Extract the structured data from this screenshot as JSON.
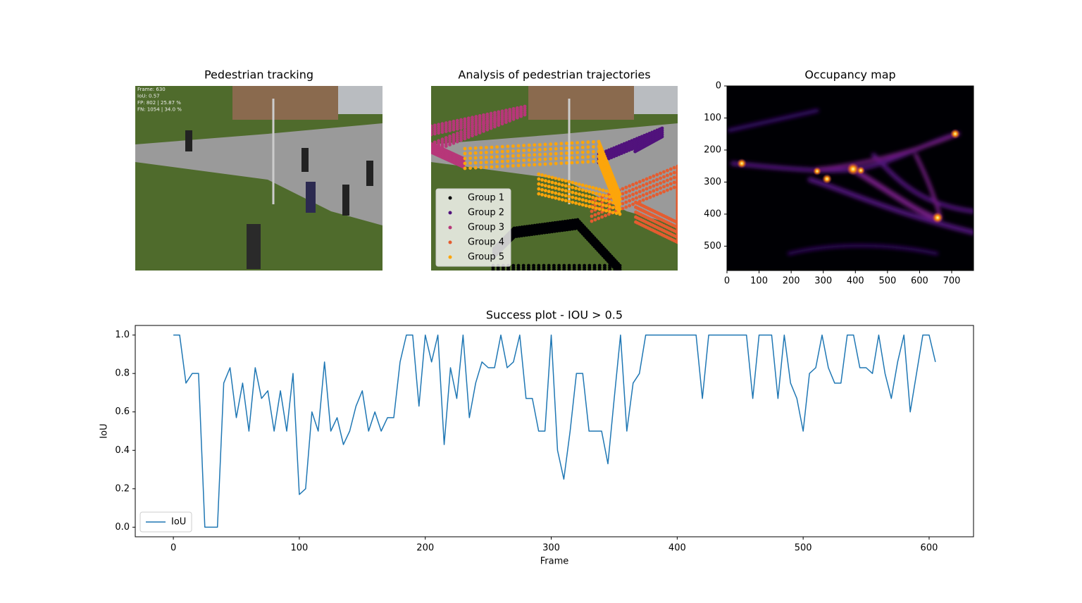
{
  "chart_data": [
    {
      "type": "image",
      "title": "Pedestrian tracking",
      "overlay": [
        "Frame: 630",
        "IoU: 0.57",
        "FP: 802 | 25.87 %",
        "FN: 1054 | 34.0 %"
      ]
    },
    {
      "type": "scatter",
      "title": "Analysis of pedestrian trajectories",
      "legend": "lower left",
      "series": [
        {
          "name": "Group 1",
          "color": "#000004"
        },
        {
          "name": "Group 2",
          "color": "#51127c"
        },
        {
          "name": "Group 3",
          "color": "#b73779"
        },
        {
          "name": "Group 4",
          "color": "#e55c30"
        },
        {
          "name": "Group 5",
          "color": "#fca50a"
        }
      ]
    },
    {
      "type": "heatmap",
      "title": "Occupancy map",
      "cmap": "inferno",
      "xlim": [
        0,
        768
      ],
      "ylim": [
        576,
        0
      ],
      "xticks": [
        0,
        100,
        200,
        300,
        400,
        500,
        600,
        700
      ],
      "yticks": [
        0,
        100,
        200,
        300,
        400,
        500
      ]
    },
    {
      "type": "line",
      "title": "Success plot - IOU > 0.5",
      "x_label": "Frame",
      "y_label": "IoU",
      "legend": "lower left",
      "xlim": [
        -30.25,
        635.25
      ],
      "ylim": [
        -0.05,
        1.05
      ],
      "xticks": [
        0,
        100,
        200,
        300,
        400,
        500,
        600
      ],
      "yticks": [
        {
          "value": 0,
          "label": "0.0"
        },
        0.2,
        0.4,
        0.6,
        0.8,
        {
          "value": 1,
          "label": "1.0"
        }
      ],
      "x": [
        0,
        5,
        10,
        15,
        20,
        25,
        30,
        35,
        40,
        45,
        50,
        55,
        60,
        65,
        70,
        75,
        80,
        85,
        90,
        95,
        100,
        105,
        110,
        115,
        120,
        125,
        130,
        135,
        140,
        145,
        150,
        155,
        160,
        165,
        170,
        175,
        180,
        185,
        190,
        195,
        200,
        205,
        210,
        215,
        220,
        225,
        230,
        235,
        240,
        245,
        250,
        255,
        260,
        265,
        270,
        275,
        280,
        285,
        290,
        295,
        300,
        305,
        310,
        315,
        320,
        325,
        330,
        335,
        340,
        345,
        350,
        355,
        360,
        365,
        370,
        375,
        380,
        385,
        390,
        395,
        400,
        405,
        410,
        415,
        420,
        425,
        430,
        435,
        440,
        445,
        450,
        455,
        460,
        465,
        470,
        475,
        480,
        485,
        490,
        495,
        500,
        505,
        510,
        515,
        520,
        525,
        530,
        535,
        540,
        545,
        550,
        555,
        560,
        565,
        570,
        575,
        580,
        585,
        590,
        595,
        600,
        605
      ],
      "series": [
        {
          "name": "IoU",
          "color": "#1f77b4",
          "values": [
            1.0,
            1.0,
            0.75,
            0.8,
            0.8,
            0.0,
            0.0,
            0.0,
            0.75,
            0.83,
            0.57,
            0.75,
            0.5,
            0.83,
            0.67,
            0.71,
            0.5,
            0.71,
            0.5,
            0.8,
            0.17,
            0.2,
            0.6,
            0.5,
            0.86,
            0.5,
            0.57,
            0.43,
            0.5,
            0.63,
            0.71,
            0.5,
            0.6,
            0.5,
            0.57,
            0.57,
            0.86,
            1.0,
            1.0,
            0.63,
            1.0,
            0.86,
            1.0,
            0.43,
            0.83,
            0.67,
            1.0,
            0.57,
            0.75,
            0.86,
            0.83,
            0.83,
            1.0,
            0.83,
            0.86,
            1.0,
            0.67,
            0.67,
            0.5,
            0.5,
            1.0,
            0.4,
            0.25,
            0.5,
            0.8,
            0.8,
            0.5,
            0.5,
            0.5,
            0.33,
            0.67,
            1.0,
            0.5,
            0.75,
            0.8,
            1.0,
            1.0,
            1.0,
            1.0,
            1.0,
            1.0,
            1.0,
            1.0,
            1.0,
            0.67,
            1.0,
            1.0,
            1.0,
            1.0,
            1.0,
            1.0,
            1.0,
            0.67,
            1.0,
            1.0,
            1.0,
            0.67,
            1.0,
            0.75,
            0.67,
            0.5,
            0.8,
            0.83,
            1.0,
            0.83,
            0.75,
            0.75,
            1.0,
            1.0,
            0.83,
            0.83,
            0.8,
            1.0,
            0.8,
            0.67,
            0.86,
            1.0,
            0.6,
            0.8,
            1.0,
            1.0,
            0.86
          ]
        }
      ]
    }
  ]
}
